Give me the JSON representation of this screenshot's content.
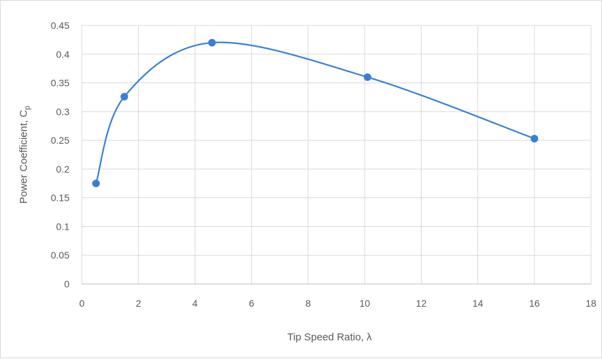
{
  "chart_data": {
    "type": "scatter",
    "title": "",
    "xlabel": "Tip Speed Ratio, λ",
    "ylabel_main": "Power Coefficient, C",
    "ylabel_sub": "p",
    "xlim": [
      0,
      18
    ],
    "ylim": [
      0,
      0.45
    ],
    "x_ticks": [
      0,
      2,
      4,
      6,
      8,
      10,
      12,
      14,
      16,
      18
    ],
    "y_ticks": [
      0,
      0.05,
      0.1,
      0.15,
      0.2,
      0.25,
      0.3,
      0.35,
      0.4,
      0.45
    ],
    "grid": true,
    "smooth": true,
    "legend": "none",
    "series": [
      {
        "color": "#3a7fd5",
        "points": [
          {
            "x": 0.5,
            "y": 0.175
          },
          {
            "x": 1.5,
            "y": 0.326
          },
          {
            "x": 4.6,
            "y": 0.42
          },
          {
            "x": 10.1,
            "y": 0.36
          },
          {
            "x": 16.0,
            "y": 0.253
          }
        ]
      }
    ]
  }
}
